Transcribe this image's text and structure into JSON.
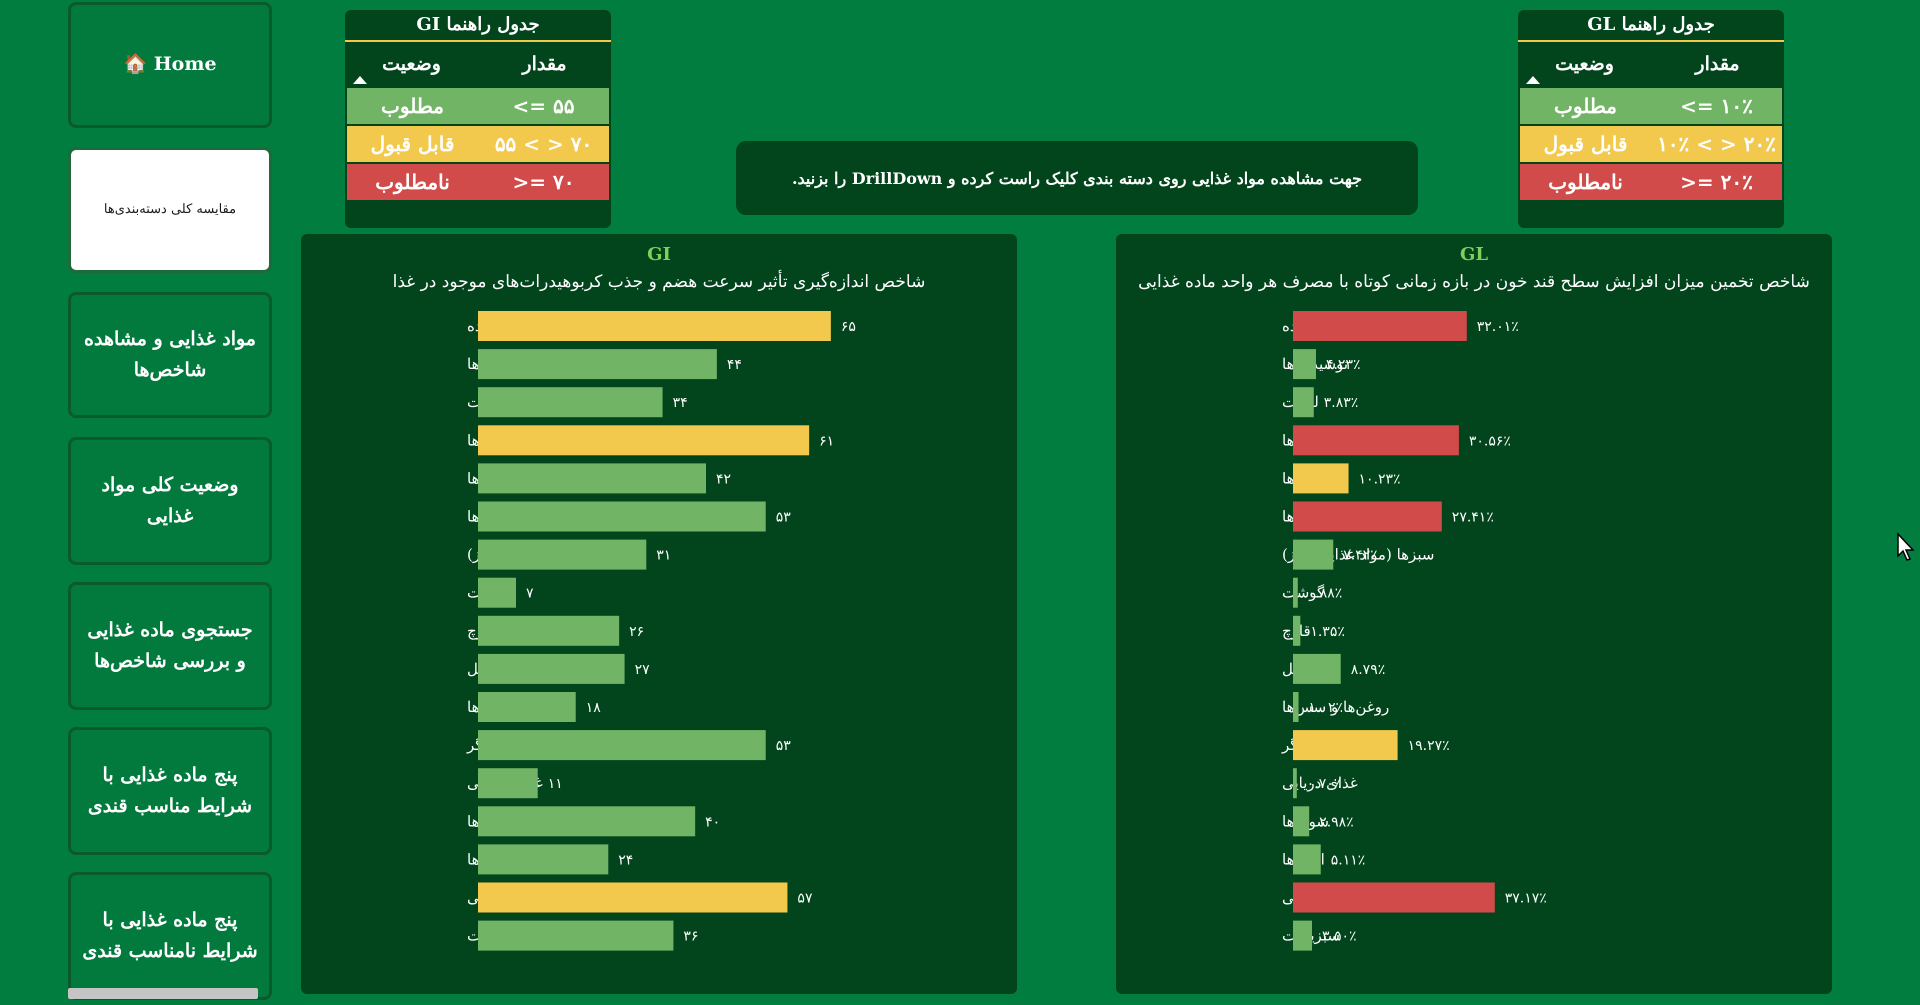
{
  "sidebar": {
    "items": [
      {
        "label": "🏠 Home"
      },
      {
        "label": "مقایسه کلی دسته‌بندی‌ها"
      },
      {
        "label": "مواد غذایی و مشاهده شاخص‌ها"
      },
      {
        "label": "وضعیت کلی مواد غذایی"
      },
      {
        "label": "جستجوی ماده غذایی و بررسی شاخص‌ها"
      },
      {
        "label": "پنج ماده غذایی با شرایط مناسب قندی"
      },
      {
        "label": "پنج ماده غذایی با شرایط نامناسب قندی"
      }
    ]
  },
  "gi_legend": {
    "title": "GI جدول راهنما",
    "col_status": "وضعیت",
    "col_value": "مقدار",
    "rows": [
      {
        "status": "مطلوب",
        "value": "<= ۵۵"
      },
      {
        "status": "قابل قبول",
        "value": "۵۵ < > ۷۰"
      },
      {
        "status": "نامطلوب",
        "value": ">= ۷۰"
      }
    ]
  },
  "gl_legend": {
    "title": "GL جدول راهنما",
    "col_status": "وضعیت",
    "col_value": "مقدار",
    "rows": [
      {
        "status": "مطلوب",
        "value": "<= ۱۰٪"
      },
      {
        "status": "قابل قبول",
        "value": "۱۰٪ < > ۲۰٪"
      },
      {
        "status": "نامطلوب",
        "value": ">= ۲۰٪"
      }
    ]
  },
  "info": {
    "text": "جهت مشاهده مواد غذایی روی دسته بندی کلیک راست کرده و DrillDown را بزنید."
  },
  "colors": {
    "green": "#72b466",
    "yellow": "#f2c94c",
    "red": "#d14b4b"
  },
  "chart_data": [
    {
      "type": "bar",
      "orientation": "horizontal",
      "title": "GI",
      "subtitle": "شاخص اندازه‌گیری تأثیر سرعت هضم و جذب کربوهیدرات‌های موجود در غذا",
      "categories": [
        "محصولات پخته شده",
        "نوشیدنی‌ها",
        "لبنیات",
        "فست فودها",
        "میوه‌ها",
        "دانه‌ها",
        "سبزها (مواد غذایی سبز)",
        "گوشت",
        "قارچ",
        "آجیل",
        "روغن‌ها و سس‌ها",
        "دیگر",
        "غذای دریایی",
        "سوپ‌ها",
        "ادویه‌ها",
        "شیرینی",
        "سبزیجات"
      ],
      "values": [
        65,
        44,
        34,
        61,
        42,
        53,
        31,
        7,
        26,
        27,
        18,
        53,
        11,
        40,
        24,
        57,
        36
      ],
      "value_labels": [
        "۶۵",
        "۴۴",
        "۳۴",
        "۶۱",
        "۴۲",
        "۵۳",
        "۳۱",
        "۷",
        "۲۶",
        "۲۷",
        "۱۸",
        "۵۳",
        "۱۱",
        "۴۰",
        "۲۴",
        "۵۷",
        "۳۶"
      ],
      "bar_colors": [
        "yellow",
        "green",
        "green",
        "yellow",
        "green",
        "green",
        "green",
        "green",
        "green",
        "green",
        "green",
        "green",
        "green",
        "green",
        "green",
        "yellow",
        "green"
      ],
      "xlim": [
        0,
        70
      ]
    },
    {
      "type": "bar",
      "orientation": "horizontal",
      "title": "GL",
      "subtitle": "شاخص تخمین میزان افزایش سطح قند خون در بازه زمانی کوتاه با مصرف هر واحد ماده غذایی",
      "categories": [
        "محصولات پخته شده",
        "نوشیدنی‌ها",
        "لبنیات",
        "فست فودها",
        "میوه‌ها",
        "دانه‌ها",
        "سبزها (مواد غذایی سبز)",
        "گوشت",
        "قارچ",
        "آجیل",
        "روغن‌ها و سس‌ها",
        "دیگر",
        "غذای دریایی",
        "سوپ‌ها",
        "ادویه‌ها",
        "شیرینی",
        "سبزیجات"
      ],
      "values": [
        32.01,
        4.23,
        3.83,
        30.56,
        10.23,
        27.41,
        7.42,
        0.88,
        1.35,
        8.79,
        1.02,
        19.27,
        0.7,
        2.98,
        5.11,
        37.17,
        3.5
      ],
      "value_labels": [
        "۳۲.۰۱٪",
        "۴.۲۳٪",
        "۳.۸۳٪",
        "۳۰.۵۶٪",
        "۱۰.۲۳٪",
        "۲۷.۴۱٪",
        "۷.۴۲٪",
        "۰.۸۸٪",
        "۱.۳۵٪",
        "۸.۷۹٪",
        "۱.۰۲٪",
        "۱۹.۲۷٪",
        "۰.۷۰٪",
        "۲.۹۸٪",
        "۵.۱۱٪",
        "۳۷.۱۷٪",
        "۳.۵۰٪"
      ],
      "bar_colors": [
        "red",
        "green",
        "green",
        "red",
        "yellow",
        "red",
        "green",
        "green",
        "green",
        "green",
        "green",
        "yellow",
        "green",
        "green",
        "green",
        "red",
        "green"
      ],
      "xlim": [
        0,
        70
      ]
    }
  ]
}
